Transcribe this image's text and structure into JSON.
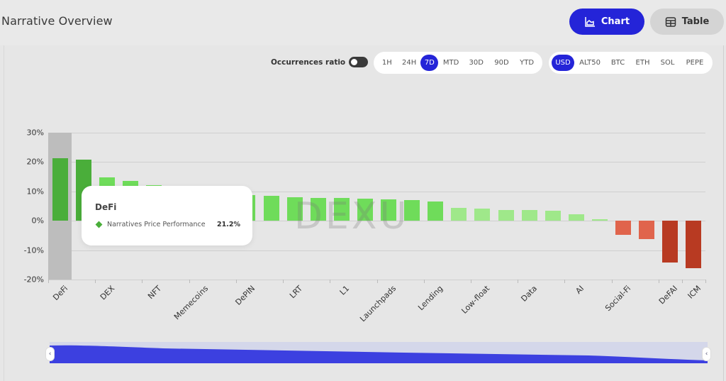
{
  "header": {
    "title": "Narrative Overview",
    "view_buttons": [
      {
        "label": "Chart",
        "icon": "area-chart-icon",
        "active": true
      },
      {
        "label": "Table",
        "icon": "table-icon",
        "active": false
      }
    ]
  },
  "controls": {
    "occurrences_ratio_label": "Occurrences ratio",
    "occurrences_ratio_on": false,
    "timeframes": [
      {
        "label": "1H",
        "active": false
      },
      {
        "label": "24H",
        "active": false
      },
      {
        "label": "7D",
        "active": true
      },
      {
        "label": "MTD",
        "active": false
      },
      {
        "label": "30D",
        "active": false
      },
      {
        "label": "90D",
        "active": false
      },
      {
        "label": "YTD",
        "active": false
      }
    ],
    "currencies": [
      {
        "label": "USD",
        "active": true
      },
      {
        "label": "ALT50",
        "active": false
      },
      {
        "label": "BTC",
        "active": false
      },
      {
        "label": "ETH",
        "active": false
      },
      {
        "label": "SOL",
        "active": false
      },
      {
        "label": "PEPE",
        "active": false
      }
    ]
  },
  "tooltip": {
    "title": "DeFi",
    "series": "Narratives Price Performance",
    "value": "21.2%"
  },
  "watermark": "DEXU",
  "colors": {
    "accent": "#2424d8",
    "positive_strong": "#4aae3a",
    "positive_mid": "#6fdc5a",
    "positive_light": "#9fe88a",
    "negative_light": "#e0644c",
    "negative_strong": "#b83a22"
  },
  "chart_data": {
    "type": "bar",
    "title": "Narrative Overview",
    "xlabel": "",
    "ylabel": "",
    "ylim": [
      -20,
      30
    ],
    "yticks": [
      "30%",
      "20%",
      "10%",
      "0%",
      "-10%",
      "-20%"
    ],
    "grid": true,
    "legend": "none (tooltip shows 'Narratives Price Performance')",
    "categories": [
      "DeFi",
      "",
      "DEX",
      "",
      "NFT",
      "",
      "Memecoins",
      "",
      "DePIN",
      "",
      "LRT",
      "",
      "L1",
      "",
      "Launchpads",
      "",
      "Lending",
      "",
      "Low-float",
      "",
      "Data",
      "",
      "AI",
      "",
      "Social-Fi",
      "",
      "DeFAI",
      "ICM"
    ],
    "visible_labels": [
      "DeFi",
      "DEX",
      "NFT",
      "Memecoins",
      "DePIN",
      "LRT",
      "L1",
      "Launchpads",
      "Lending",
      "Low-float",
      "Data",
      "AI",
      "Social-Fi",
      "DeFAI",
      "ICM"
    ],
    "series": [
      {
        "name": "Narratives Price Performance",
        "values": [
          21.2,
          20.7,
          14.8,
          13.4,
          12.0,
          11.0,
          10.0,
          9.2,
          8.6,
          8.5,
          7.9,
          7.8,
          7.6,
          7.4,
          7.2,
          7.1,
          6.4,
          4.4,
          4.1,
          3.7,
          3.6,
          3.4,
          2.2,
          0.6,
          -4.7,
          -6.3,
          -14.3,
          -16.2
        ]
      }
    ],
    "highlighted": {
      "category": "DeFi",
      "value": 21.2
    }
  }
}
